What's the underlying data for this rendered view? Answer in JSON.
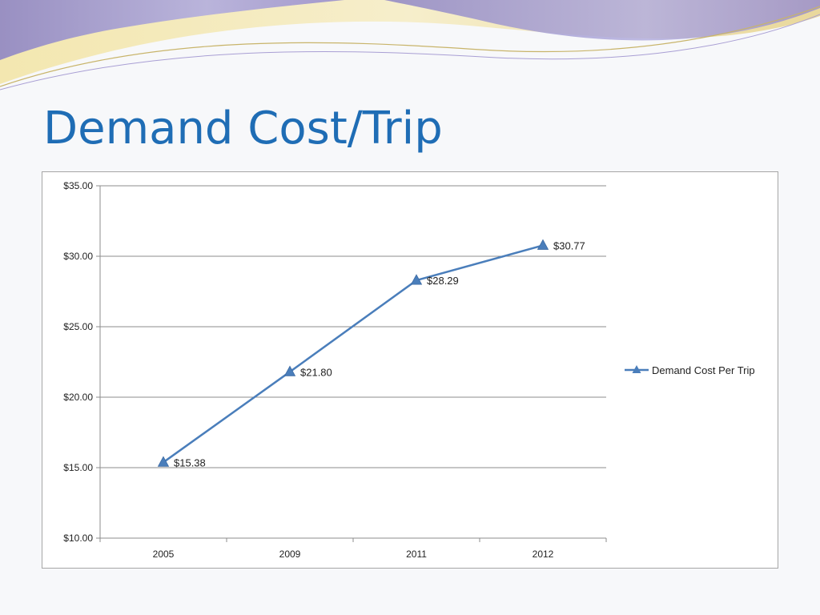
{
  "slide": {
    "title": "Demand Cost/Trip",
    "accent_color": "#1f6db5"
  },
  "chart_data": {
    "type": "line",
    "categories": [
      "2005",
      "2009",
      "2011",
      "2012"
    ],
    "series": [
      {
        "name": "Demand Cost Per Trip",
        "values": [
          15.38,
          21.8,
          28.29,
          30.77
        ],
        "data_labels": [
          "$15.38",
          "$21.80",
          "$28.29",
          "$30.77"
        ],
        "color": "#4a7ebb",
        "marker": "triangle"
      }
    ],
    "y_ticks": [
      "$35.00",
      "$30.00",
      "$25.00",
      "$20.00",
      "$15.00",
      "$10.00"
    ],
    "ylim": [
      10,
      35
    ],
    "grid": true,
    "legend_position": "right"
  }
}
